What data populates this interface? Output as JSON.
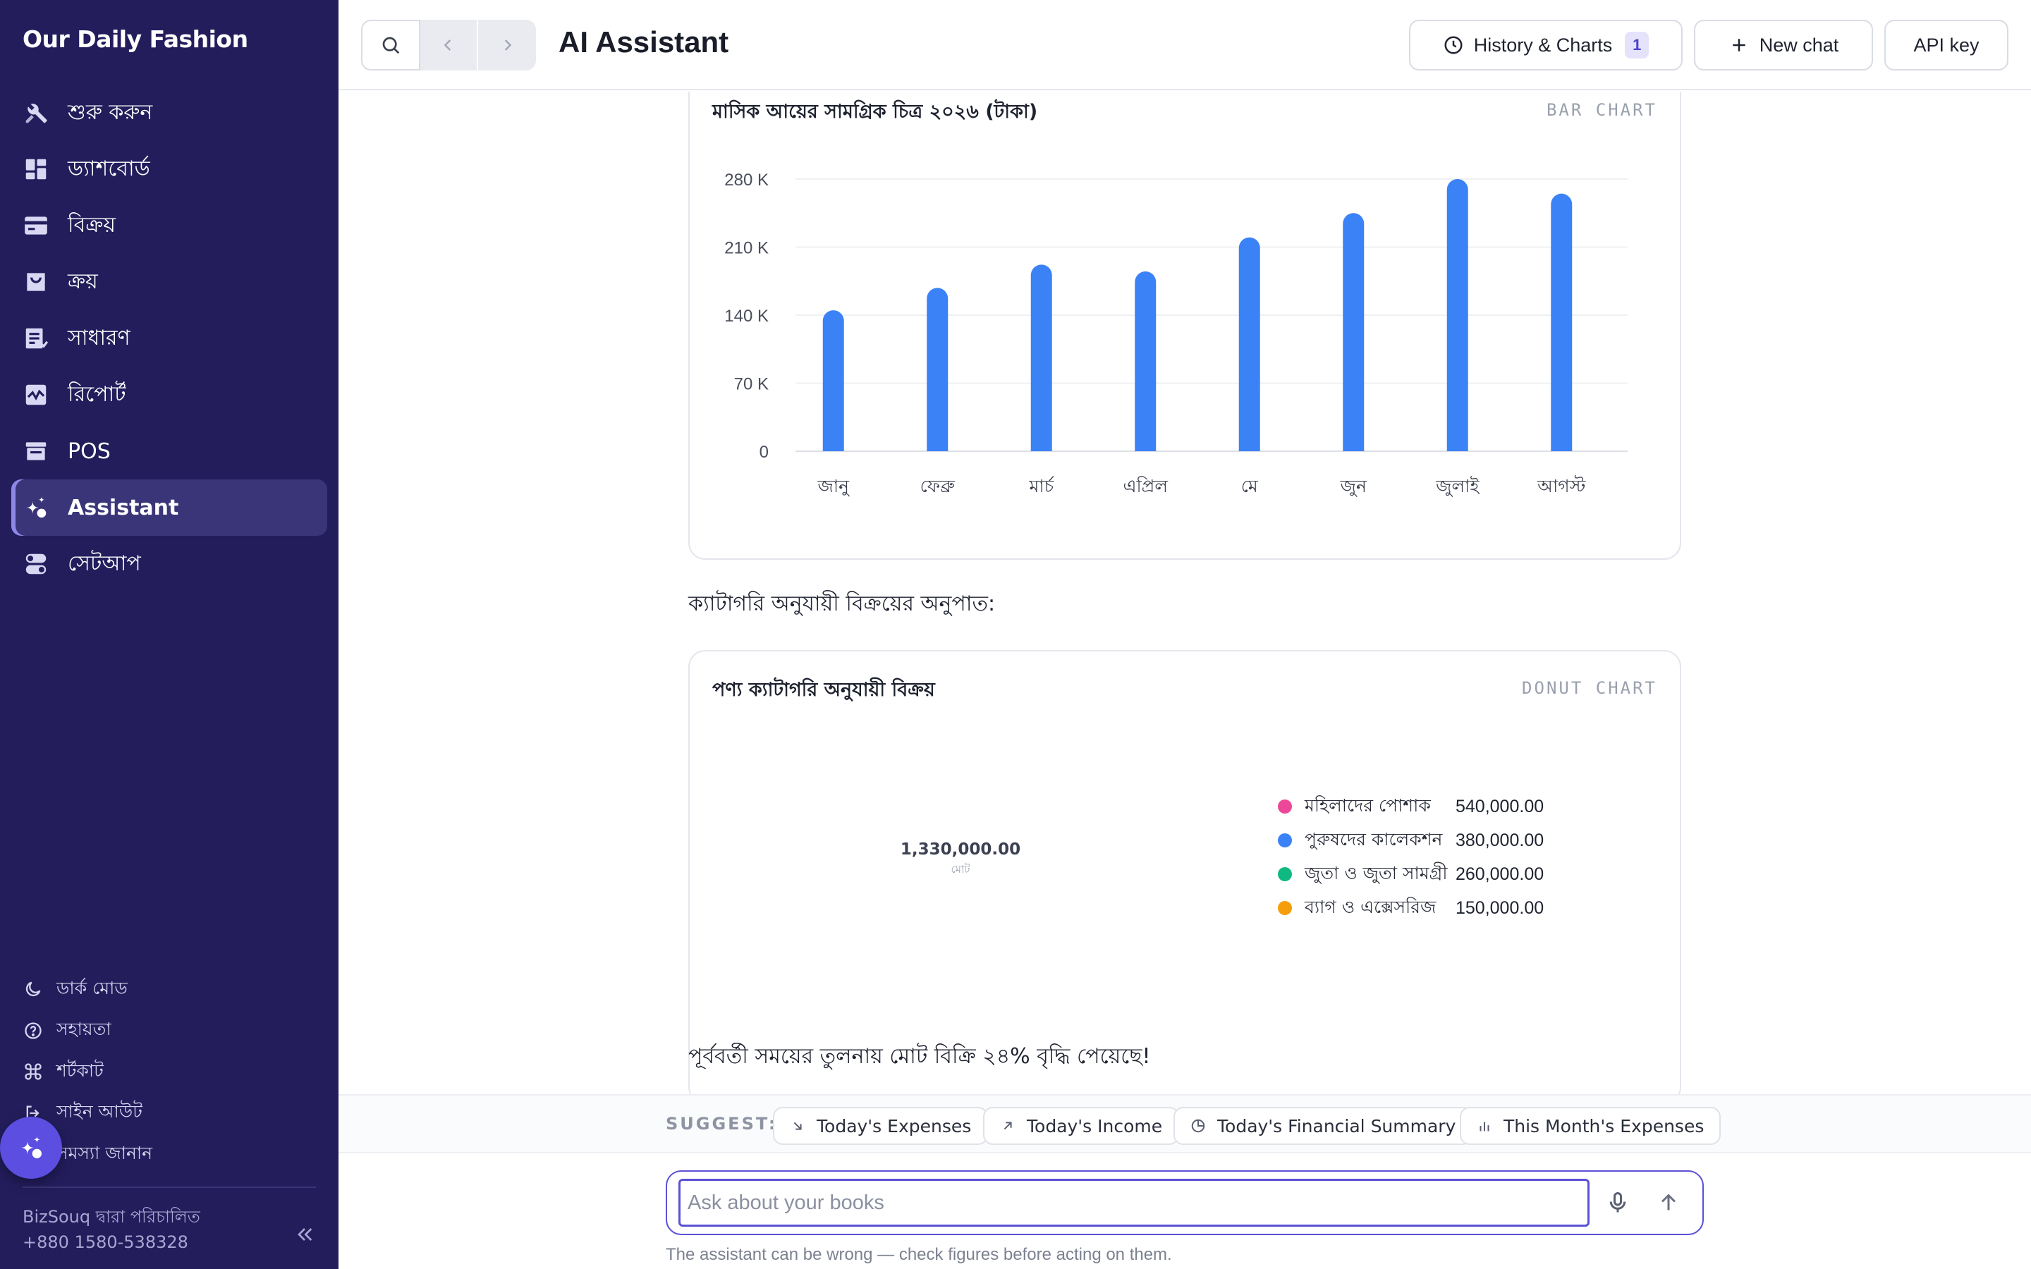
{
  "sidebar": {
    "brand": "Our Daily Fashion",
    "items": [
      {
        "label": "শুরু করুন",
        "icon": "tools-icon"
      },
      {
        "label": "ড্যাশবোর্ড",
        "icon": "dashboard-icon"
      },
      {
        "label": "বিক্রয়",
        "icon": "card-icon"
      },
      {
        "label": "ক্রয়",
        "icon": "bag-icon"
      },
      {
        "label": "সাধারণ",
        "icon": "ledger-icon"
      },
      {
        "label": "রিপোর্ট",
        "icon": "chart-pulse-icon"
      },
      {
        "label": "POS",
        "icon": "store-icon"
      },
      {
        "label": "Assistant",
        "icon": "sparkle-icon",
        "active": true
      },
      {
        "label": "সেটআপ",
        "icon": "toggles-icon"
      }
    ],
    "bottom_links": {
      "dark_mode": "ডার্ক মোড",
      "help": "সহায়তা",
      "shortcuts": "শর্টকাট",
      "sign_out": "সাইন আউট",
      "report_issue": "সমস্যা জানান"
    },
    "powered_by": "BizSouq দ্বারা পরিচালিত",
    "phone": "+880 1580-538328"
  },
  "topbar": {
    "title": "AI Assistant",
    "history_label": "History & Charts",
    "history_count": "1",
    "new_chat_label": "New chat",
    "api_key_label": "API key"
  },
  "main": {
    "bar_card": {
      "title": "মাসিক আয়ের সামগ্রিক চিত্র ২০২৬ (টাকা)",
      "kind": "BAR CHART"
    },
    "category_intro": "ক্যাটাগরি অনুযায়ী বিক্রয়ের অনুপাত:",
    "donut_card": {
      "title": "পণ্য ক্যাটাগরি অনুযায়ী বিক্রয়",
      "kind": "DONUT CHART",
      "total": "1,330,000.00",
      "total_label": "মোট"
    },
    "growth_note": "পূর্ববর্তী সময়ের তুলনায় মোট বিক্রি ২৪% বৃদ্ধি পেয়েছে!"
  },
  "suggest": {
    "label": "SUGGEST:",
    "chips": [
      {
        "label": "Today's Expenses",
        "icon": "arrow-down-right-icon"
      },
      {
        "label": "Today's Income",
        "icon": "arrow-up-right-icon"
      },
      {
        "label": "Today's Financial Summary",
        "icon": "pie-icon"
      },
      {
        "label": "This Month's Expenses",
        "icon": "bar-chart-icon"
      }
    ]
  },
  "composer": {
    "placeholder": "Ask about your books",
    "disclaimer": "The assistant can be wrong — check figures before acting on them."
  },
  "chart_data": [
    {
      "type": "bar",
      "title": "মাসিক আয়ের সামগ্রিক চিত্র ২০২৬ (টাকা)",
      "categories": [
        "জানু",
        "ফেব্রু",
        "মার্চ",
        "এপ্রিল",
        "মে",
        "জুন",
        "জুলাই",
        "আগস্ট"
      ],
      "values": [
        145000,
        168000,
        192000,
        185000,
        220000,
        245000,
        280000,
        265000
      ],
      "yticks": [
        "0",
        "70 K",
        "140 K",
        "210 K",
        "280 K"
      ],
      "ylim": [
        0,
        280000
      ],
      "color": "#3b82f6",
      "grid": true
    },
    {
      "type": "pie",
      "title": "পণ্য ক্যাটাগরি অনুযায়ী বিক্রয়",
      "labels": [
        "মহিলাদের পোশাক",
        "পুরুষদের কালেকশন",
        "জুতা ও জুতা সামগ্রী",
        "ব্যাগ ও এক্সেসরিজ"
      ],
      "values": [
        540000,
        380000,
        260000,
        150000
      ],
      "value_labels": [
        "540,000.00",
        "380,000.00",
        "260,000.00",
        "150,000.00"
      ],
      "colors": [
        "#ec4899",
        "#3b82f6",
        "#10b981",
        "#f59e0b"
      ],
      "legend": "right"
    }
  ]
}
